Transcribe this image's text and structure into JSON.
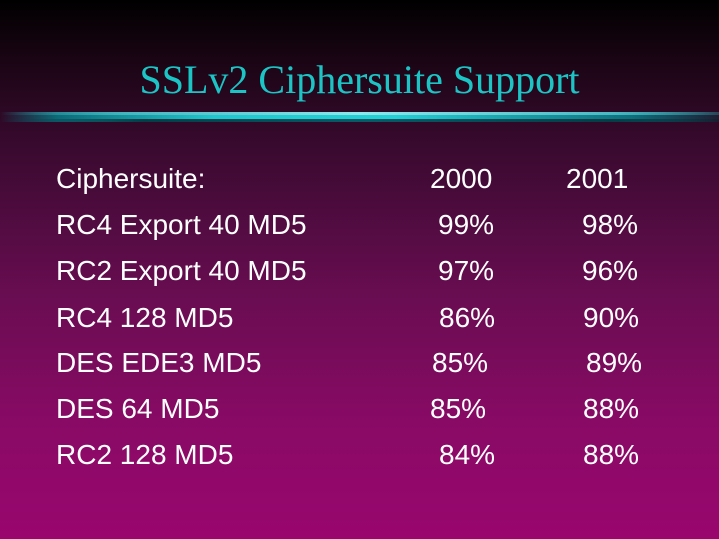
{
  "slide": {
    "title": "SSLv2 Ciphersuite Support"
  },
  "table": {
    "header": {
      "label": "Ciphersuite:",
      "col1": "2000",
      "col2": "2001"
    },
    "rows": [
      {
        "name": "RC4 Export 40 MD5",
        "y2000": "99%",
        "y2001": "98%"
      },
      {
        "name": "RC2 Export 40 MD5",
        "y2000": "97%",
        "y2001": "96%"
      },
      {
        "name": "RC4 128 MD5",
        "y2000": "86%",
        "y2001": "90%"
      },
      {
        "name": "DES EDE3 MD5",
        "y2000": "85%",
        "y2001": "89%"
      },
      {
        "name": "DES 64 MD5",
        "y2000": "85%",
        "y2001": "88%"
      },
      {
        "name": "RC2 128 MD5",
        "y2000": "84%",
        "y2001": "88%"
      }
    ]
  },
  "colors": {
    "title": "#1cc5c5",
    "text": "#ffffff",
    "rule": "#23d0d6"
  }
}
